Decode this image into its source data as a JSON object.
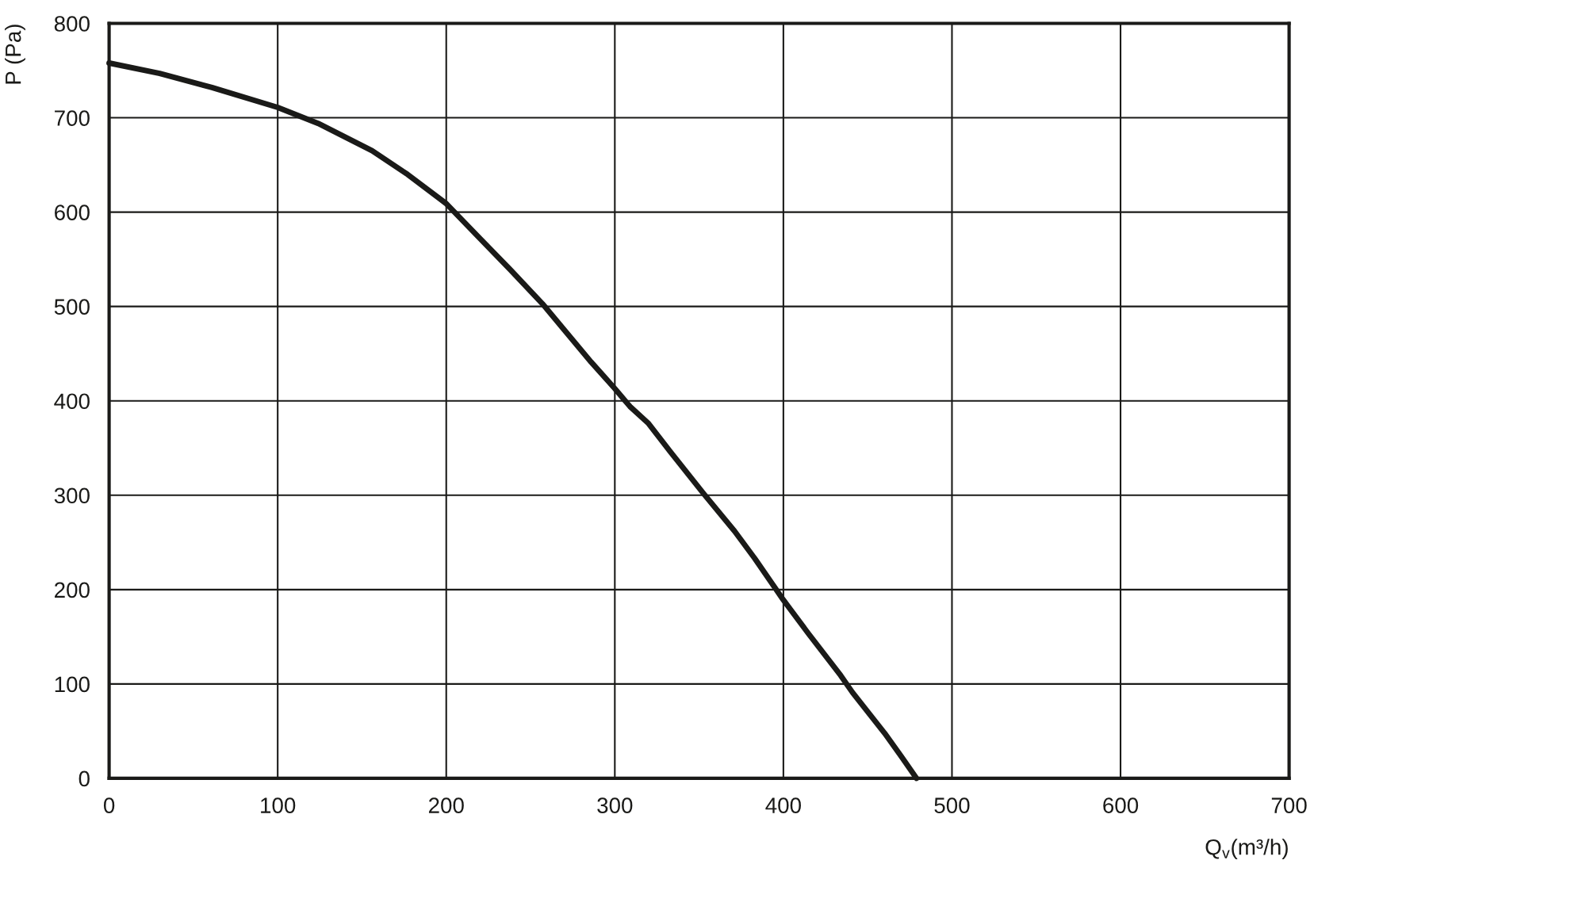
{
  "chart_data": {
    "type": "line",
    "xlabel": "Q$_{v}$(m³/h)",
    "ylabel": "P (Pa)",
    "x": [
      0,
      30,
      61,
      100,
      124,
      156,
      177,
      200,
      220,
      238,
      257,
      271,
      286,
      300,
      309,
      320,
      333,
      353,
      371,
      383,
      395,
      400,
      415,
      434,
      441,
      460,
      470,
      479
    ],
    "series": [
      {
        "color": "#1a1a18",
        "values": [
          758,
          747,
          732,
          711,
          694,
          665,
          640,
          609,
          572,
          539,
          503,
          473,
          441,
          413,
          394,
          376,
          346,
          301,
          262,
          233,
          202,
          189,
          153,
          109,
          91,
          48,
          23,
          0
        ]
      }
    ],
    "xlim": [
      0,
      700
    ],
    "ylim": [
      0,
      800
    ],
    "xticks": [
      0,
      100,
      200,
      300,
      400,
      500,
      600,
      700
    ],
    "yticks": [
      0,
      100,
      200,
      300,
      400,
      500,
      600,
      700,
      800
    ],
    "grid": true,
    "marker": "none",
    "line_style": "solid"
  }
}
